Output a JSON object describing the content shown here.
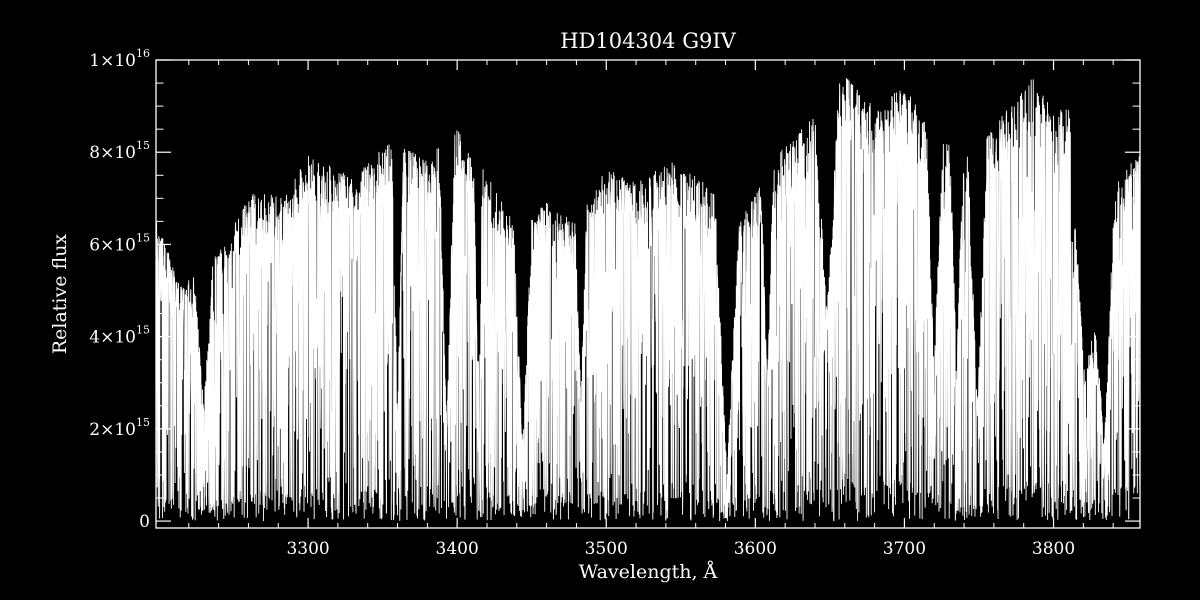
{
  "chart_data": {
    "type": "line",
    "title": "HD104304   G9IV",
    "xlabel": "Wavelength, Å",
    "ylabel": "Relative flux",
    "xlim": [
      3198,
      3858
    ],
    "ylim": [
      -150000000000000.0,
      1e+16
    ],
    "grid": false,
    "legend": "none",
    "colors": {
      "background": "#000000",
      "foreground": "#ffffff"
    },
    "x_ticks": [
      {
        "value": 3300,
        "label": "3300"
      },
      {
        "value": 3400,
        "label": "3400"
      },
      {
        "value": 3500,
        "label": "3500"
      },
      {
        "value": 3600,
        "label": "3600"
      },
      {
        "value": 3700,
        "label": "3700"
      },
      {
        "value": 3800,
        "label": "3800"
      }
    ],
    "y_ticks": [
      {
        "value": 0,
        "label": "0",
        "base": "0",
        "exp": ""
      },
      {
        "value": 2000000000000000.0,
        "label": "2×10^15",
        "base": "2×10",
        "exp": "15"
      },
      {
        "value": 4000000000000000.0,
        "label": "4×10^15",
        "base": "4×10",
        "exp": "15"
      },
      {
        "value": 6000000000000000.0,
        "label": "6×10^15",
        "base": "6×10",
        "exp": "15"
      },
      {
        "value": 8000000000000000.0,
        "label": "8×10^15",
        "base": "8×10",
        "exp": "15"
      },
      {
        "value": 1e+16,
        "label": "1×10^16",
        "base": "1×10",
        "exp": "16"
      }
    ],
    "x_minor_step": 20,
    "y_minor_step": 500000000000000.0,
    "series": [
      {
        "style": "dense absorption spectrum",
        "continuum_points": [
          [
            3198,
            6400000000000000.0
          ],
          [
            3215,
            5000000000000000.0
          ],
          [
            3240,
            5700000000000000.0
          ],
          [
            3262,
            7000000000000000.0
          ],
          [
            3285,
            6900000000000000.0
          ],
          [
            3300,
            7800000000000000.0
          ],
          [
            3330,
            7300000000000000.0
          ],
          [
            3355,
            8100000000000000.0
          ],
          [
            3380,
            7700000000000000.0
          ],
          [
            3400,
            8400000000000000.0
          ],
          [
            3420,
            7400000000000000.0
          ],
          [
            3440,
            6200000000000000.0
          ],
          [
            3460,
            6800000000000000.0
          ],
          [
            3480,
            6400000000000000.0
          ],
          [
            3500,
            7500000000000000.0
          ],
          [
            3520,
            7200000000000000.0
          ],
          [
            3545,
            7700000000000000.0
          ],
          [
            3570,
            7100000000000000.0
          ],
          [
            3590,
            6400000000000000.0
          ],
          [
            3615,
            7800000000000000.0
          ],
          [
            3640,
            8700000000000000.0
          ],
          [
            3660,
            9500000000000000.0
          ],
          [
            3680,
            8800000000000000.0
          ],
          [
            3700,
            9300000000000000.0
          ],
          [
            3720,
            8200000000000000.0
          ],
          [
            3745,
            7700000000000000.0
          ],
          [
            3765,
            8600000000000000.0
          ],
          [
            3785,
            9500000000000000.0
          ],
          [
            3800,
            8700000000000000.0
          ],
          [
            3812,
            8900000000000000.0
          ],
          [
            3830,
            4500000000000000.0
          ],
          [
            3845,
            7500000000000000.0
          ],
          [
            3858,
            7800000000000000.0
          ]
        ],
        "deep_features": [
          {
            "x": 3230,
            "width": 6,
            "depth": 0.55
          },
          {
            "x": 3360,
            "width": 4,
            "depth": 0.7
          },
          {
            "x": 3393,
            "width": 5,
            "depth": 0.75
          },
          {
            "x": 3414,
            "width": 3,
            "depth": 0.6
          },
          {
            "x": 3444,
            "width": 6,
            "depth": 0.75
          },
          {
            "x": 3483,
            "width": 4,
            "depth": 0.6
          },
          {
            "x": 3581,
            "width": 8,
            "depth": 0.85
          },
          {
            "x": 3608,
            "width": 4,
            "depth": 0.6
          },
          {
            "x": 3648,
            "width": 8,
            "depth": 0.5
          },
          {
            "x": 3720,
            "width": 5,
            "depth": 0.6
          },
          {
            "x": 3735,
            "width": 4,
            "depth": 0.6
          },
          {
            "x": 3749,
            "width": 6,
            "depth": 0.7
          },
          {
            "x": 3821,
            "width": 10,
            "depth": 0.55
          },
          {
            "x": 3834,
            "width": 6,
            "depth": 0.7
          }
        ]
      }
    ]
  }
}
